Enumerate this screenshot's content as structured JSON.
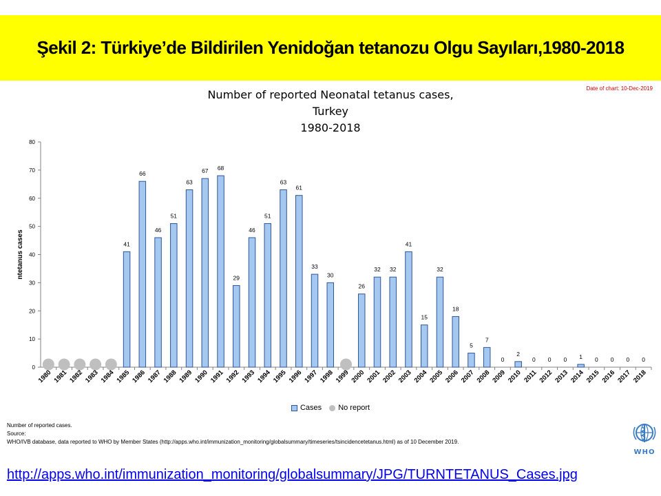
{
  "header": {
    "title": "Şekil 2: Türkiye’de Bildirilen Yenidoğan tetanozu Olgu Sayıları,1980-2018",
    "background_color": "#ffff00"
  },
  "date_note": "Date of chart: 10-Dec-2019",
  "chart_data": {
    "type": "bar",
    "title_lines": [
      "Number of reported Neonatal tetanus cases,",
      "Turkey",
      "1980-2018"
    ],
    "ylabel": "ntetanus cases",
    "xlabel": "",
    "ylim": [
      0,
      80
    ],
    "yticks": [
      0,
      10,
      20,
      30,
      40,
      50,
      60,
      70,
      80
    ],
    "grid": false,
    "legend_position": "bottom",
    "categories": [
      "1980",
      "1981",
      "1982",
      "1983",
      "1984",
      "1985",
      "1986",
      "1987",
      "1988",
      "1989",
      "1990",
      "1991",
      "1992",
      "1993",
      "1994",
      "1995",
      "1996",
      "1997",
      "1998",
      "1999",
      "2000",
      "2001",
      "2002",
      "2003",
      "2004",
      "2005",
      "2006",
      "2007",
      "2008",
      "2009",
      "2010",
      "2011",
      "2012",
      "2013",
      "2014",
      "2015",
      "2016",
      "2017",
      "2018"
    ],
    "series": [
      {
        "name": "Cases",
        "color": "#a4c8ef",
        "stroke": "#2f5597",
        "values": [
          null,
          null,
          null,
          null,
          null,
          41,
          66,
          46,
          51,
          63,
          67,
          68,
          29,
          46,
          51,
          63,
          61,
          33,
          30,
          null,
          26,
          32,
          32,
          41,
          15,
          32,
          18,
          5,
          7,
          0,
          2,
          0,
          0,
          0,
          1,
          0,
          0,
          0,
          0
        ]
      },
      {
        "name": "No report",
        "color": "#bfbfbf",
        "years": [
          "1980",
          "1981",
          "1982",
          "1983",
          "1984",
          "1999"
        ]
      }
    ]
  },
  "legend": {
    "items": [
      {
        "label": "Cases"
      },
      {
        "label": "No report"
      }
    ]
  },
  "notes": {
    "line1": "Number of reported cases.",
    "line2": "Source:",
    "line3": "WHO/IVB database, data reported to WHO by Member States (http://apps.who.int/immunization_monitoring/globalsummary/timeseries/tsincidencetetanus.html) as of 10 December 2019."
  },
  "logo": {
    "text": "WHO",
    "icon": "who-emblem-icon"
  },
  "source_link": "http://apps.who.int/immunization_monitoring/globalsummary/JPG/TURNTETANUS_Cases.jpg"
}
